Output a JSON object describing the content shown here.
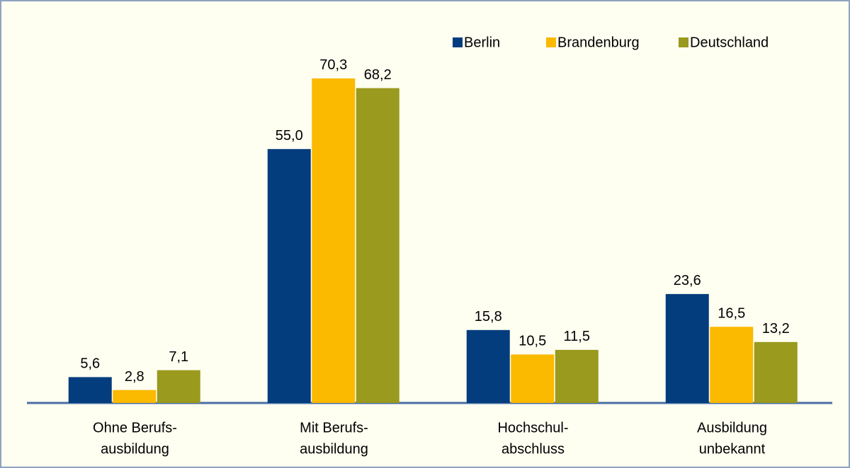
{
  "chart_data": {
    "type": "bar",
    "categories": [
      [
        "Ohne Berufs-",
        "ausbildung"
      ],
      [
        "Mit Berufs-",
        "ausbildung"
      ],
      [
        "Hochschul-",
        "abschluss"
      ],
      [
        "Ausbildung",
        "unbekannt"
      ]
    ],
    "series": [
      {
        "name": "Berlin",
        "color": "#033d7d",
        "values": [
          5.6,
          55.0,
          15.8,
          23.6
        ],
        "value_labels": [
          "5,6",
          "55,0",
          "15,8",
          "23,6"
        ]
      },
      {
        "name": "Brandenburg",
        "color": "#fbb900",
        "values": [
          2.8,
          70.3,
          10.5,
          16.5
        ],
        "value_labels": [
          "2,8",
          "70,3",
          "10,5",
          "16,5"
        ]
      },
      {
        "name": "Deutschland",
        "color": "#9a9a1e",
        "values": [
          7.1,
          68.2,
          11.5,
          13.2
        ],
        "value_labels": [
          "7,1",
          "68,2",
          "11,5",
          "13,2"
        ]
      }
    ],
    "legend": "top-right"
  }
}
